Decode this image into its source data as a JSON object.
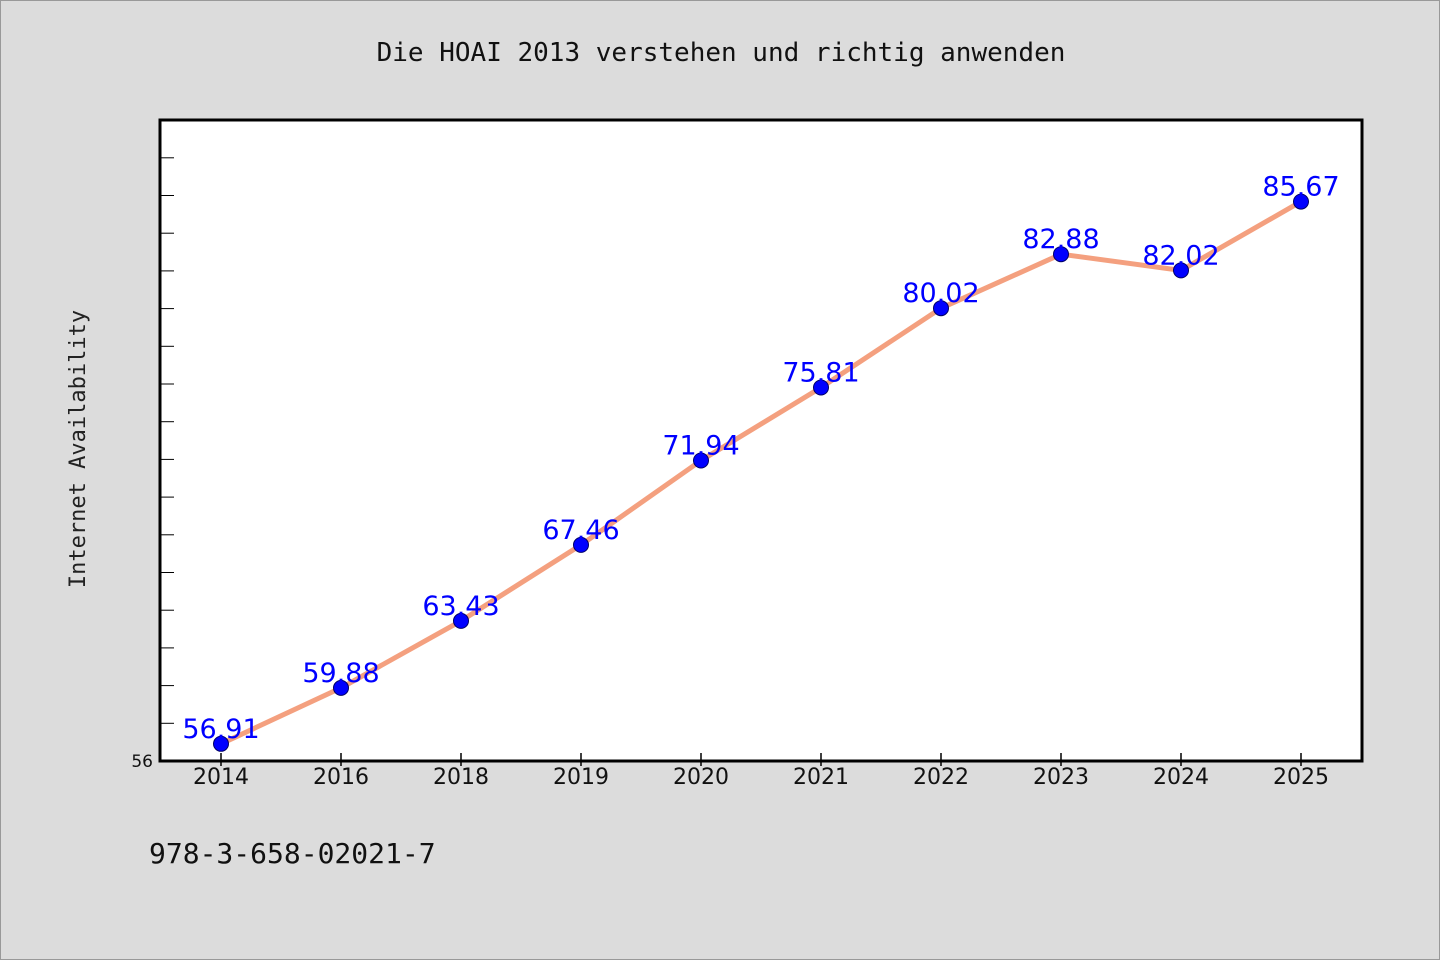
{
  "chart_data": {
    "type": "line",
    "title": "Die HOAI 2013 verstehen und richtig anwenden",
    "xlabel": "",
    "ylabel": "Internet Availability",
    "categories": [
      "2014",
      "2016",
      "2018",
      "2019",
      "2020",
      "2021",
      "2022",
      "2023",
      "2024",
      "2025"
    ],
    "series": [
      {
        "values": [
          56.91,
          59.88,
          63.43,
          67.46,
          71.94,
          75.81,
          80.02,
          82.88,
          82.02,
          85.67
        ],
        "data_labels": [
          "56.91",
          "59.88",
          "63.43",
          "67.46",
          "71.94",
          "75.81",
          "80.02",
          "82.88",
          "82.02",
          "85.67"
        ]
      }
    ],
    "y_tick_labels": [
      "56"
    ],
    "ylim": [
      56,
      90
    ],
    "grid": false,
    "legend": "none",
    "colors": {
      "line": "#f4a07f",
      "marker": "#0000ff",
      "data_label": "#0000ff",
      "background": "#dcdcdc",
      "plot_background": "#ffffff"
    }
  },
  "footer_text": "978-3-658-02021-7"
}
